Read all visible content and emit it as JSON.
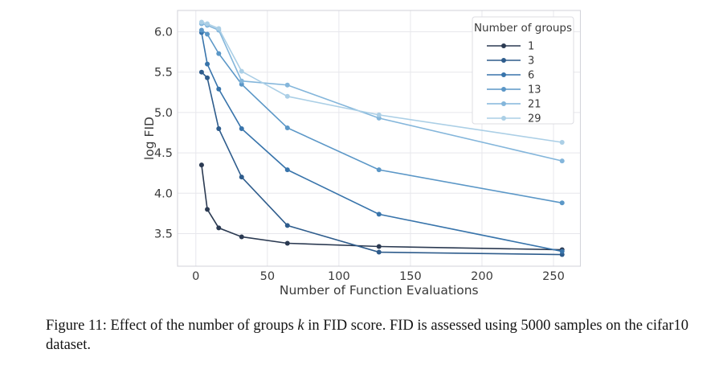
{
  "figure": {
    "caption": {
      "prefix": "Figure 11: Effect of the number of groups ",
      "math_var": "k",
      "suffix": " in FID score. FID is assessed using 5000 samples on the cifar10 dataset."
    }
  },
  "chart_data": {
    "type": "line",
    "title": "",
    "xlabel": "Number of Function Evaluations",
    "ylabel": "log FID",
    "x": [
      4,
      8,
      16,
      32,
      64,
      128,
      256
    ],
    "series": [
      {
        "name": "1",
        "color": "#2b3a52",
        "values": [
          4.35,
          3.8,
          3.57,
          3.46,
          3.38,
          3.34,
          3.3
        ]
      },
      {
        "name": "3",
        "color": "#2e5c8c",
        "values": [
          5.5,
          5.43,
          4.8,
          4.2,
          3.6,
          3.27,
          3.24
        ]
      },
      {
        "name": "6",
        "color": "#3874ab",
        "values": [
          5.99,
          5.6,
          5.29,
          4.8,
          4.29,
          3.74,
          3.28
        ]
      },
      {
        "name": "13",
        "color": "#5b97c7",
        "values": [
          6.02,
          5.97,
          5.73,
          5.35,
          4.81,
          4.29,
          3.88
        ]
      },
      {
        "name": "21",
        "color": "#84b6db",
        "values": [
          6.1,
          6.08,
          6.02,
          5.39,
          5.34,
          4.93,
          4.4
        ]
      },
      {
        "name": "29",
        "color": "#abcfe6",
        "values": [
          6.12,
          6.1,
          6.04,
          5.51,
          5.2,
          4.97,
          4.63
        ]
      }
    ],
    "x_ticks": [
      0,
      50,
      100,
      150,
      200,
      250
    ],
    "y_ticks": [
      "3.5",
      "4.0",
      "4.5",
      "5.0",
      "5.5",
      "6.0"
    ],
    "xlim": [
      -12.8,
      268.8
    ],
    "ylim": [
      3.096,
      6.264
    ],
    "grid": true,
    "legend": {
      "title": "Number of groups",
      "position": "upper right"
    }
  },
  "style": {
    "grid_color": "#e7e7ec",
    "spine_color": "#d4d5db",
    "tick_label_color": "#3a3a3a",
    "axis_label_color": "#3a3a3a",
    "legend_border_color": "#dcdce2",
    "legend_bg": "#ffffff"
  }
}
